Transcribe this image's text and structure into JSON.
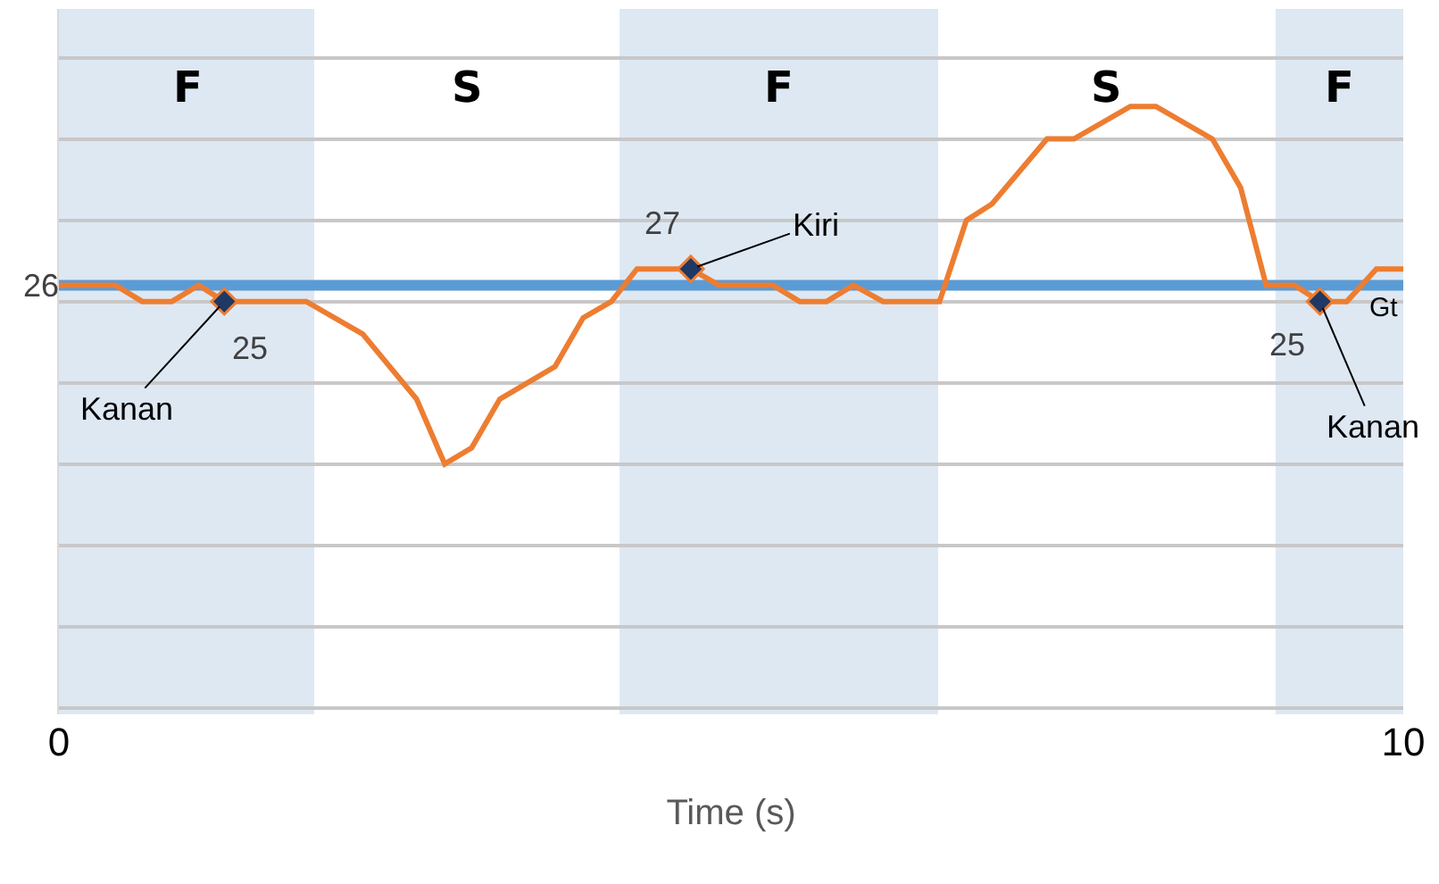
{
  "chart_data": {
    "type": "line",
    "xlabel": "Time (s)",
    "xlim": [
      0,
      10
    ],
    "xticks": [
      0,
      10
    ],
    "ylim": [
      -0.4,
      43
    ],
    "yticks": [
      {
        "value": 0,
        "label": null
      },
      {
        "value": 5,
        "label": null
      },
      {
        "value": 10,
        "label": null
      },
      {
        "value": 15,
        "label": null
      },
      {
        "value": 20,
        "label": null
      },
      {
        "value": 25,
        "label": null
      },
      {
        "value": 30,
        "label": null
      },
      {
        "value": 35,
        "label": null
      },
      {
        "value": 40,
        "label": null
      }
    ],
    "grid": "y",
    "series": [
      {
        "color": "#ed7d31",
        "marker": "none",
        "x": [
          0,
          0.42,
          0.62,
          0.84,
          1.04,
          1.23,
          1.84,
          2.26,
          2.66,
          2.87,
          3.07,
          3.28,
          3.69,
          3.9,
          4.11,
          4.3,
          4.5,
          4.7,
          4.91,
          5.31,
          5.51,
          5.71,
          5.91,
          6.13,
          6.55,
          6.75,
          6.94,
          7.35,
          7.55,
          7.97,
          8.16,
          8.58,
          8.79,
          8.98,
          9.19,
          9.38,
          9.58,
          9.8,
          10
        ],
        "values": [
          26,
          26,
          25,
          25,
          26,
          25,
          25,
          23,
          19,
          15,
          16,
          19,
          21,
          24,
          25,
          27,
          27,
          27,
          26,
          26,
          25,
          25,
          26,
          25,
          25,
          30,
          31,
          35,
          35,
          37,
          37,
          35,
          32,
          26,
          26,
          25,
          25,
          27,
          27
        ]
      },
      {
        "type": "scatter",
        "color": "#1f3864",
        "marker": "diamond",
        "x": [
          1.23,
          4.7,
          9.38
        ],
        "values": [
          25,
          27,
          25
        ],
        "value_labels": [
          "25",
          "27",
          "25"
        ]
      }
    ],
    "ref_lines": [
      {
        "axis": "y",
        "value": 26,
        "label": "Gt",
        "color": "#5b9bd5"
      }
    ],
    "bands": [
      {
        "axis": "x",
        "from": 0,
        "to": 1.9,
        "label": "F",
        "color": "#dee8f3"
      },
      {
        "axis": "x",
        "from": 4.17,
        "to": 6.54,
        "label": "F",
        "color": "#dee8f3"
      },
      {
        "axis": "x",
        "from": 9.05,
        "to": 10,
        "label": "F",
        "color": "#dee8f3"
      }
    ],
    "annotations": [
      {
        "text": "Kanan",
        "x": 1.23,
        "y": 25
      },
      {
        "text": "Kiri",
        "x": 4.7,
        "y": 27
      },
      {
        "text": "Kanan",
        "x": 9.38,
        "y": 25
      },
      {
        "text": "26",
        "x": 0,
        "y": 26
      },
      "S",
      "S"
    ]
  }
}
